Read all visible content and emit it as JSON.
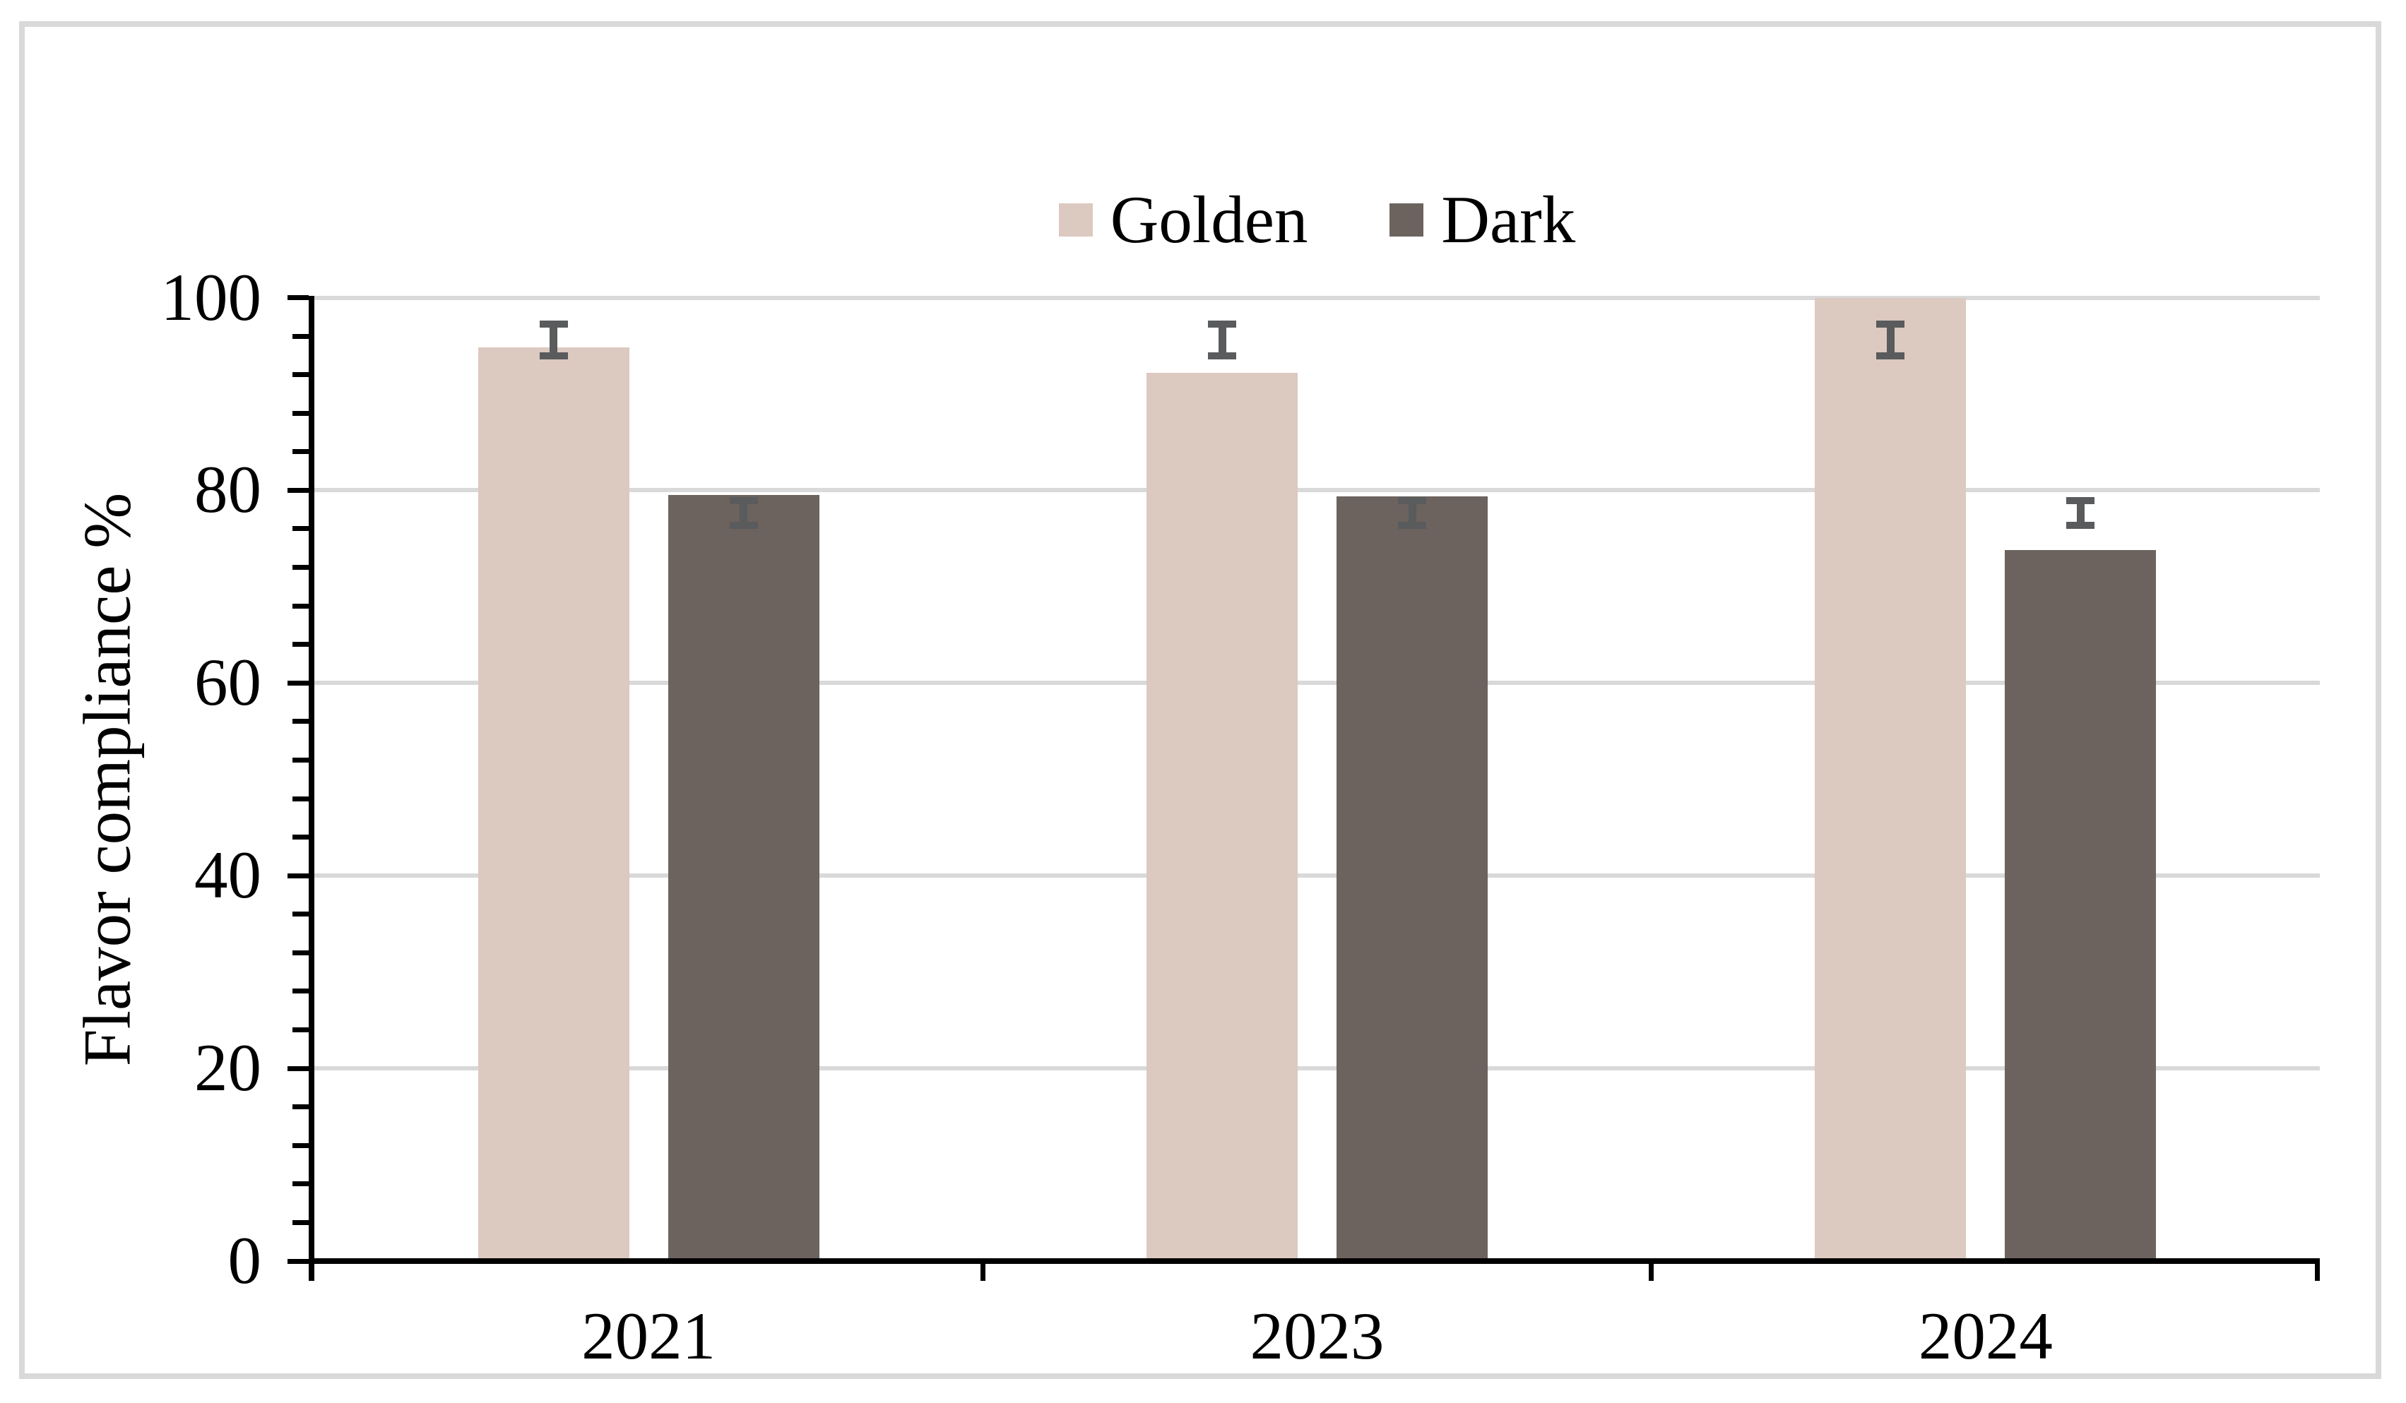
{
  "chart_data": {
    "type": "bar",
    "title": "",
    "categories": [
      "2021",
      "2023",
      "2024"
    ],
    "series": [
      {
        "name": "Golden",
        "color": "#dcc9c0",
        "values": [
          94.8,
          92.2,
          100
        ],
        "error_bars": [
          {
            "low": 93.6,
            "high": 97.6
          },
          {
            "low": 93.6,
            "high": 97.6
          },
          {
            "low": 93.6,
            "high": 97.6
          }
        ]
      },
      {
        "name": "Dark",
        "color": "#6c635e",
        "values": [
          79.5,
          79.4,
          73.8
        ],
        "error_bars": [
          {
            "low": 76.0,
            "high": 79.3
          },
          {
            "low": 76.0,
            "high": 79.3
          },
          {
            "low": 76.0,
            "high": 79.3
          }
        ]
      }
    ],
    "xlabel": "",
    "ylabel": "Flavor compliance %",
    "ylim": [
      0,
      100
    ],
    "yticks": [
      0,
      20,
      40,
      60,
      80,
      100
    ],
    "minor_tick_step": 4,
    "grid": "horizontal-major",
    "legend_position": "top-center",
    "colors": {
      "error_bar": "#595b5c",
      "gridline": "#d9d9d9",
      "axis": "#000000",
      "figure_border": "#d9d9d9",
      "background": "#ffffff",
      "text": "#000000"
    }
  }
}
